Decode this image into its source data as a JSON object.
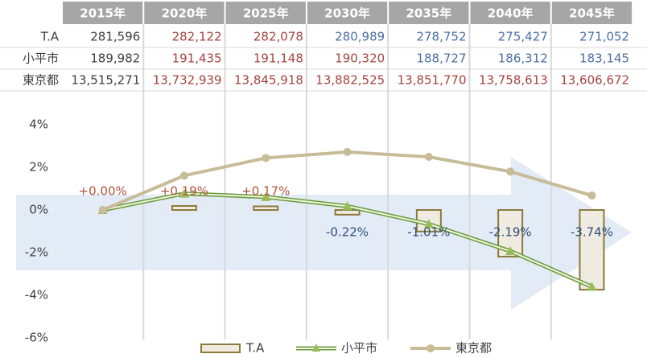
{
  "table": {
    "headers": [
      "2015年",
      "2020年",
      "2025年",
      "2030年",
      "2035年",
      "2040年",
      "2045年"
    ],
    "rows": [
      {
        "label": "T.A",
        "values": [
          "281,596",
          "282,122",
          "282,078",
          "280,989",
          "278,752",
          "275,427",
          "271,052"
        ]
      },
      {
        "label": "小平市",
        "values": [
          "189,982",
          "191,435",
          "191,148",
          "190,320",
          "188,727",
          "186,312",
          "183,145"
        ]
      },
      {
        "label": "東京都",
        "values": [
          "13,515,271",
          "13,732,939",
          "13,845,918",
          "13,882,525",
          "13,851,770",
          "13,758,613",
          "13,606,672"
        ]
      }
    ]
  },
  "chart_data": {
    "type": "combo",
    "ylim": [
      -6,
      4
    ],
    "yticks": [
      {
        "value": 4,
        "label": "4%"
      },
      {
        "value": 2,
        "label": "2%"
      },
      {
        "value": 0,
        "label": "0%"
      },
      {
        "value": -2,
        "label": "-2%"
      },
      {
        "value": -4,
        "label": "-4%"
      },
      {
        "value": -6,
        "label": "-6%"
      }
    ],
    "series": [
      {
        "name": "T.A",
        "type": "bar",
        "color": "#efebe0",
        "edge": "#8b7a3a",
        "values": [
          0,
          0.19,
          0.17,
          -0.22,
          -1.01,
          -2.19,
          -3.74
        ],
        "value_labels": [
          "+0.00%",
          "+0.19%",
          "+0.17%",
          "-0.22%",
          "-1.01%",
          "-2.19%",
          "-3.74%"
        ]
      },
      {
        "name": "小平市",
        "type": "line",
        "color": "#6a9a3a",
        "marker": "triangle",
        "values": [
          0,
          0.77,
          0.61,
          0.18,
          -0.66,
          -1.93,
          -3.6
        ]
      },
      {
        "name": "東京都",
        "type": "line",
        "color": "#c8bc98",
        "marker": "circle",
        "values": [
          0,
          1.61,
          2.44,
          2.72,
          2.49,
          1.8,
          0.68
        ]
      }
    ]
  }
}
